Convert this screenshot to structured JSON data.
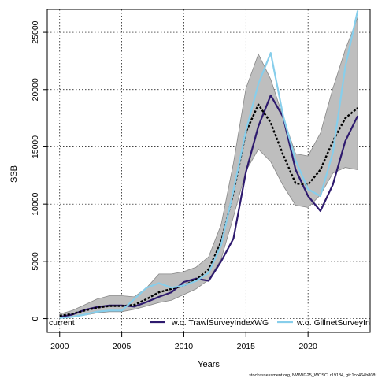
{
  "chart_data": {
    "type": "line",
    "title": "",
    "xlabel": "Years",
    "ylabel": "SSB",
    "xlim": [
      1999,
      2025
    ],
    "ylim": [
      -1200,
      27000
    ],
    "xticks": [
      2000,
      2005,
      2010,
      2015,
      2020
    ],
    "yticks": [
      0,
      5000,
      10000,
      15000,
      20000,
      25000
    ],
    "xtick_labels": [
      "2000",
      "2005",
      "2010",
      "2015",
      "2020"
    ],
    "ytick_labels": [
      "0",
      "5000",
      "10000",
      "15000",
      "20000",
      "25000"
    ],
    "grid": true,
    "legend_position": "bottom",
    "footer": "stockassessment.org, NWWG25_WOSC, r19184, git:1cc464b808f",
    "x": [
      2000,
      2001,
      2002,
      2003,
      2004,
      2005,
      2006,
      2007,
      2008,
      2009,
      2010,
      2011,
      2012,
      2013,
      2014,
      2015,
      2016,
      2017,
      2018,
      2019,
      2020,
      2021,
      2022,
      2023,
      2024
    ],
    "band": {
      "upper": [
        400,
        700,
        1200,
        1700,
        2000,
        2000,
        1900,
        2700,
        3900,
        3900,
        4100,
        4500,
        5400,
        8200,
        13600,
        20100,
        23100,
        20900,
        17600,
        14400,
        14200,
        16200,
        20100,
        23500,
        26300
      ],
      "lower": [
        100,
        120,
        300,
        500,
        600,
        600,
        800,
        1100,
        1400,
        1600,
        2100,
        2600,
        3400,
        5200,
        8900,
        12900,
        14800,
        13700,
        11600,
        9900,
        9700,
        10800,
        12700,
        13200,
        13000
      ]
    },
    "series": [
      {
        "name": "current",
        "color": "#000000",
        "dash": "3,2",
        "values": [
          250,
          400,
          700,
          950,
          1100,
          1100,
          1200,
          1700,
          2300,
          2600,
          2900,
          3400,
          4300,
          6700,
          11000,
          16300,
          18700,
          17100,
          14300,
          11800,
          11700,
          13000,
          15500,
          17500,
          18400
        ]
      },
      {
        "name": "w.o. TrawlSurveyIndexWG",
        "color": "#2e1a6e",
        "dash": "",
        "values": [
          150,
          350,
          750,
          1000,
          1150,
          1150,
          1050,
          1450,
          1900,
          2300,
          3200,
          3500,
          3300,
          5000,
          7000,
          12800,
          16800,
          19500,
          17600,
          13000,
          10700,
          9400,
          11700,
          15500,
          17700
        ]
      },
      {
        "name": "w.o. GillnetSurveyIndexWG",
        "color": "#87ceeb",
        "dash": "",
        "values": [
          50,
          150,
          350,
          600,
          700,
          700,
          1700,
          2700,
          3100,
          2700,
          2900,
          3300,
          4000,
          6400,
          11200,
          16400,
          20500,
          23200,
          17700,
          13800,
          11300,
          10700,
          14500,
          22000,
          26900
        ]
      }
    ]
  }
}
